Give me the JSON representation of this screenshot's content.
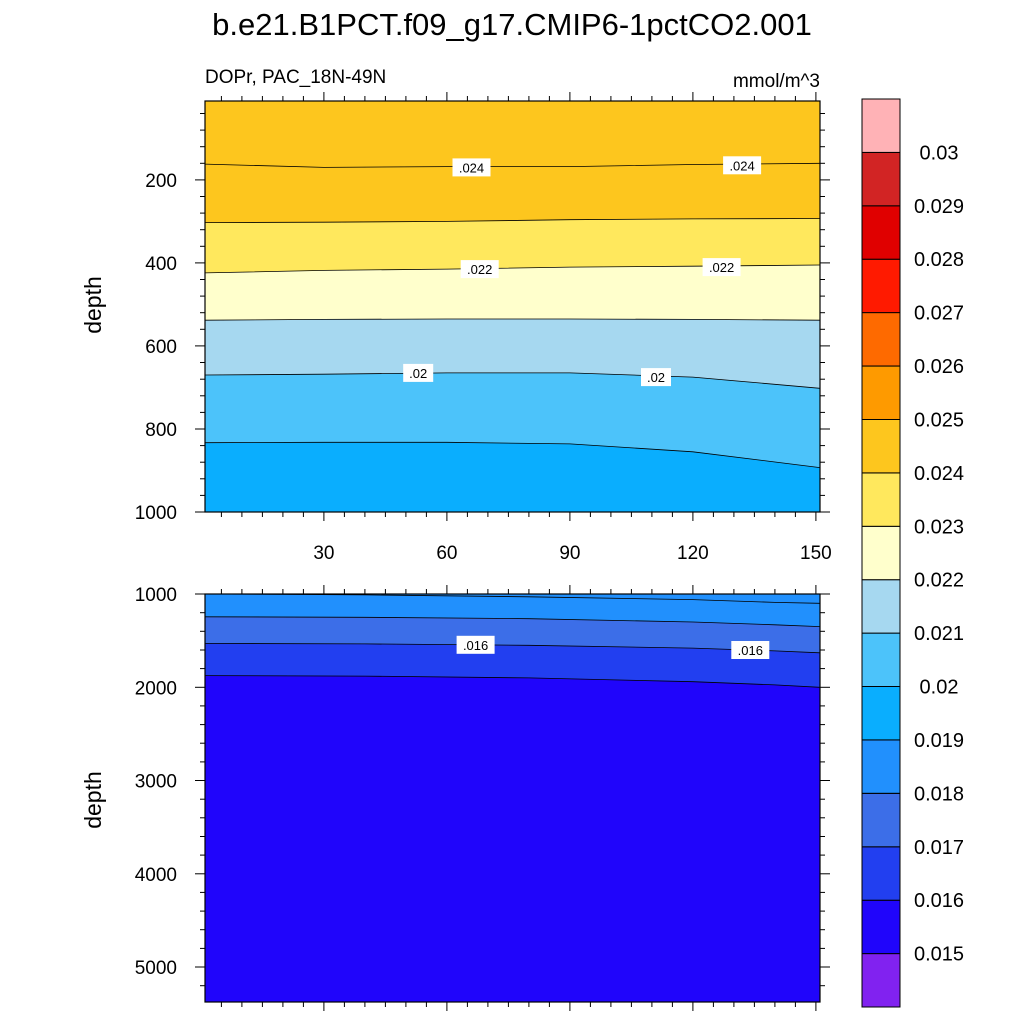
{
  "figure": {
    "title": "b.e21.B1PCT.f09_g17.CMIP6-1pctCO2.001",
    "left_subtitle": "DOPr, PAC_18N-49N",
    "right_subtitle": "mmol/m^3"
  },
  "chart_data": {
    "type": "heatmap",
    "variable": "DOPr",
    "units": "mmol/m^3",
    "x": {
      "label": "",
      "range": [
        1,
        151
      ],
      "ticks": [
        30,
        60,
        90,
        120,
        150
      ],
      "tick_labels": [
        "30",
        "60",
        "90",
        "120",
        "150"
      ]
    },
    "colorbar": {
      "levels": [
        0.015,
        0.016,
        0.017,
        0.018,
        0.019,
        0.02,
        0.021,
        0.022,
        0.023,
        0.024,
        0.025,
        0.026,
        0.027,
        0.028,
        0.029,
        0.03
      ],
      "level_labels": [
        "0.015",
        "0.016",
        "0.017",
        "0.018",
        "0.019",
        "0.02",
        "0.021",
        "0.022",
        "0.023",
        "0.024",
        "0.025",
        "0.026",
        "0.027",
        "0.028",
        "0.029",
        "0.03"
      ],
      "colors": [
        "#8122f0",
        "#2005fb",
        "#223ff0",
        "#3c6ee8",
        "#2190fd",
        "#0aaefe",
        "#4cc3fa",
        "#a6d8f0",
        "#ffffcc",
        "#ffe85d",
        "#fdc61e",
        "#fe9a00",
        "#fe6a00",
        "#ff1a00",
        "#e00000",
        "#d22424",
        "#ffb2b6"
      ]
    },
    "panels": [
      {
        "name": "upper",
        "ylabel": "depth",
        "ylim": [
          10,
          1000
        ],
        "y_reversed": true,
        "y_ticks": [
          200,
          400,
          600,
          800,
          1000
        ],
        "y_tick_labels": [
          "200",
          "400",
          "600",
          "800",
          "1000"
        ],
        "show_x_tick_labels": true,
        "top_color": "#fdc61e",
        "boundaries": [
          {
            "level": 0.024,
            "x": [
              1,
              30,
              60,
              90,
              120,
              151
            ],
            "depth": [
              162,
              170,
              168,
              168,
              163,
              160
            ]
          },
          {
            "level": 0.023,
            "x": [
              1,
              30,
              60,
              90,
              120,
              151
            ],
            "depth": [
              303,
              302,
              300,
              296,
              294,
              293
            ]
          },
          {
            "level": 0.022,
            "x": [
              1,
              30,
              60,
              90,
              120,
              151
            ],
            "depth": [
              424,
              418,
              415,
              410,
              408,
              405
            ]
          },
          {
            "level": 0.021,
            "x": [
              1,
              30,
              60,
              90,
              120,
              151
            ],
            "depth": [
              538,
              536,
              535,
              535,
              536,
              538
            ]
          },
          {
            "level": 0.02,
            "x": [
              1,
              30,
              60,
              90,
              120,
              151
            ],
            "depth": [
              670,
              668,
              665,
              665,
              675,
              702
            ]
          },
          {
            "level": 0.019,
            "x": [
              1,
              30,
              60,
              90,
              120,
              151
            ],
            "depth": [
              833,
              832,
              832,
              836,
              855,
              893
            ]
          }
        ],
        "contour_labels": [
          {
            "text": ".024",
            "x": 66,
            "depth": 170
          },
          {
            "text": ".024",
            "x": 132,
            "depth": 165
          },
          {
            "text": ".022",
            "x": 68,
            "depth": 415
          },
          {
            "text": ".022",
            "x": 127,
            "depth": 410
          },
          {
            "text": ".02",
            "x": 53,
            "depth": 665
          },
          {
            "text": ".02",
            "x": 111,
            "depth": 675
          }
        ]
      },
      {
        "name": "lower",
        "ylabel": "depth",
        "ylim": [
          1000,
          5375
        ],
        "y_reversed": true,
        "y_ticks": [
          1000,
          2000,
          3000,
          4000,
          5000
        ],
        "y_tick_labels": [
          "1000",
          "2000",
          "3000",
          "4000",
          "5000"
        ],
        "show_x_tick_labels": false,
        "top_color": "#2190fd",
        "boundaries": [
          {
            "level": 0.018,
            "x": [
              1,
              40,
              80,
              120,
              140,
              151
            ],
            "depth": [
              1000,
              1010,
              1030,
              1060,
              1090,
              1100
            ]
          },
          {
            "level": 0.017,
            "x": [
              1,
              40,
              80,
              120,
              140,
              151
            ],
            "depth": [
              1245,
              1250,
              1265,
              1300,
              1330,
              1350
            ]
          },
          {
            "level": 0.016,
            "x": [
              1,
              40,
              80,
              120,
              140,
              151
            ],
            "depth": [
              1530,
              1535,
              1550,
              1580,
              1610,
              1630
            ]
          },
          {
            "level": 0.015,
            "x": [
              1,
              40,
              80,
              120,
              140,
              151
            ],
            "depth": [
              1875,
              1880,
              1900,
              1940,
              1975,
              2000
            ]
          }
        ],
        "contour_labels": [
          {
            "text": ".016",
            "x": 67,
            "depth": 1545
          },
          {
            "text": ".016",
            "x": 134,
            "depth": 1600
          }
        ]
      }
    ]
  }
}
